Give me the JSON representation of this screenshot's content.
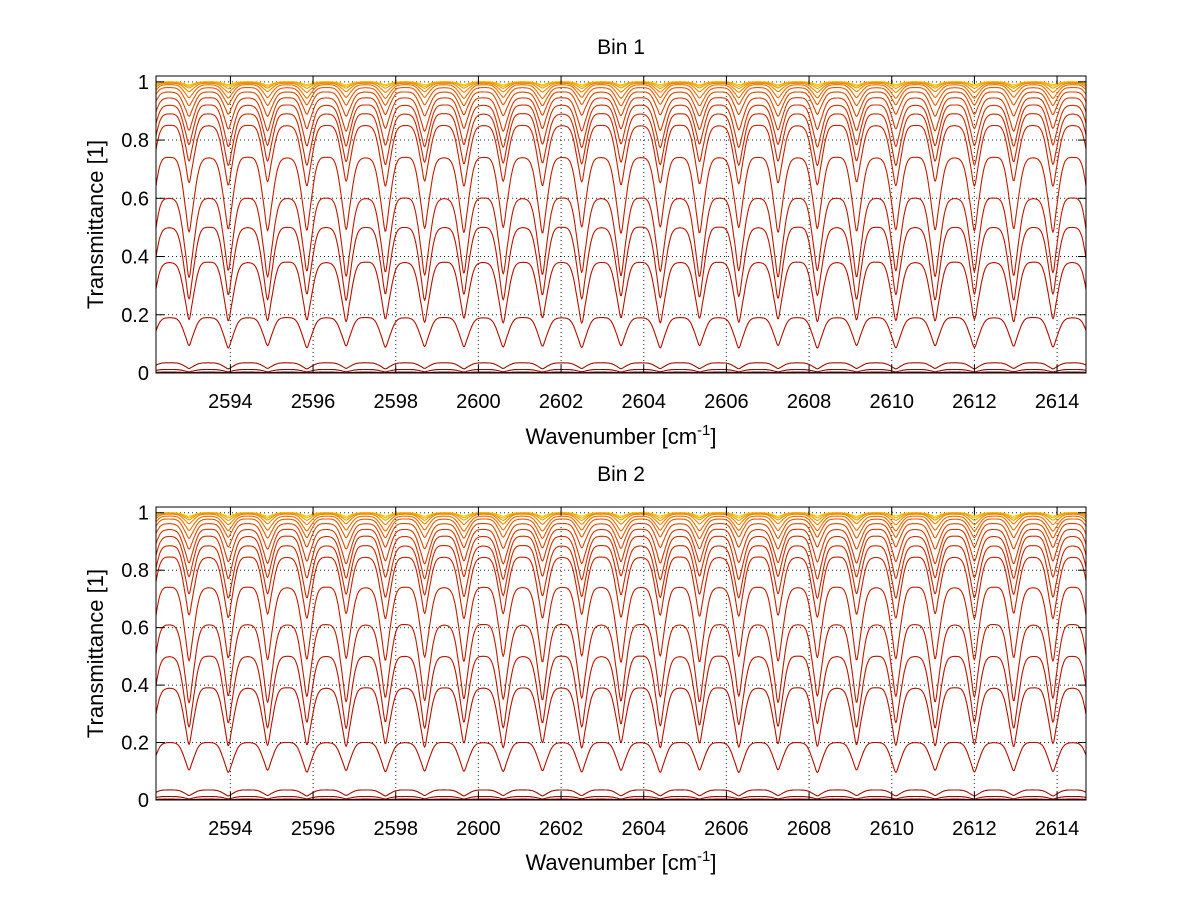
{
  "chart_data": [
    {
      "type": "line",
      "title": "Bin 1",
      "xlabel": "Wavenumber [cm",
      "xlabel_sup": "-1",
      "xlabel_suffix": "]",
      "ylabel": "Transmittance [1]",
      "xlim": [
        2592.2,
        2614.7
      ],
      "ylim": [
        0,
        1.02
      ],
      "grid": true,
      "xticks": [
        2594,
        2596,
        2598,
        2600,
        2602,
        2604,
        2606,
        2608,
        2610,
        2612,
        2614
      ],
      "xtick_labels": [
        "2594",
        "2596",
        "2598",
        "2600",
        "2602",
        "2604",
        "2606",
        "2608",
        "2610",
        "2612",
        "2614"
      ],
      "yticks": [
        0,
        0.2,
        0.4,
        0.6,
        0.8,
        1
      ],
      "ytick_labels": [
        "0",
        "0.2",
        "0.4",
        "0.6",
        "0.8",
        "1"
      ],
      "line_spacing_cm1": 0.95,
      "series": [
        {
          "baseline": 1.0,
          "depth": 0.01,
          "color": "#f5d000"
        },
        {
          "baseline": 1.0,
          "depth": 0.015,
          "color": "#f2b600"
        },
        {
          "baseline": 0.998,
          "depth": 0.02,
          "color": "#f09a00"
        },
        {
          "baseline": 0.995,
          "depth": 0.03,
          "color": "#ee8400"
        },
        {
          "baseline": 0.99,
          "depth": 0.045,
          "color": "#ea6e00"
        },
        {
          "baseline": 0.98,
          "depth": 0.06,
          "color": "#e25a00"
        },
        {
          "baseline": 0.965,
          "depth": 0.08,
          "color": "#d84800"
        },
        {
          "baseline": 0.945,
          "depth": 0.11,
          "color": "#d23a00"
        },
        {
          "baseline": 0.92,
          "depth": 0.14,
          "color": "#cc3000"
        },
        {
          "baseline": 0.89,
          "depth": 0.17,
          "color": "#c82800"
        },
        {
          "baseline": 0.85,
          "depth": 0.2,
          "color": "#c42200"
        },
        {
          "baseline": 0.74,
          "depth": 0.25,
          "color": "#c01e00"
        },
        {
          "baseline": 0.6,
          "depth": 0.26,
          "color": "#bc1a00"
        },
        {
          "baseline": 0.5,
          "depth": 0.24,
          "color": "#b81600"
        },
        {
          "baseline": 0.38,
          "depth": 0.2,
          "color": "#b41200"
        },
        {
          "baseline": 0.19,
          "depth": 0.1,
          "color": "#ae1000"
        },
        {
          "baseline": 0.035,
          "depth": 0.02,
          "color": "#a00c00"
        },
        {
          "baseline": 0.012,
          "depth": 0.008,
          "color": "#900800"
        },
        {
          "baseline": 0.003,
          "depth": 0.002,
          "color": "#800000"
        }
      ]
    },
    {
      "type": "line",
      "title": "Bin 2",
      "xlabel": "Wavenumber [cm",
      "xlabel_sup": "-1",
      "xlabel_suffix": "]",
      "ylabel": "Transmittance [1]",
      "xlim": [
        2592.2,
        2614.7
      ],
      "ylim": [
        0,
        1.02
      ],
      "grid": true,
      "xticks": [
        2594,
        2596,
        2598,
        2600,
        2602,
        2604,
        2606,
        2608,
        2610,
        2612,
        2614
      ],
      "xtick_labels": [
        "2594",
        "2596",
        "2598",
        "2600",
        "2602",
        "2604",
        "2606",
        "2608",
        "2610",
        "2612",
        "2614"
      ],
      "yticks": [
        0,
        0.2,
        0.4,
        0.6,
        0.8,
        1
      ],
      "ytick_labels": [
        "0",
        "0.2",
        "0.4",
        "0.6",
        "0.8",
        "1"
      ],
      "line_spacing_cm1": 0.95,
      "series": [
        {
          "baseline": 1.0,
          "depth": 0.012,
          "color": "#f5d000"
        },
        {
          "baseline": 1.0,
          "depth": 0.018,
          "color": "#f2b600"
        },
        {
          "baseline": 0.998,
          "depth": 0.024,
          "color": "#f09a00"
        },
        {
          "baseline": 0.995,
          "depth": 0.035,
          "color": "#ee8400"
        },
        {
          "baseline": 0.988,
          "depth": 0.05,
          "color": "#ea6e00"
        },
        {
          "baseline": 0.978,
          "depth": 0.065,
          "color": "#e25a00"
        },
        {
          "baseline": 0.962,
          "depth": 0.085,
          "color": "#d84800"
        },
        {
          "baseline": 0.942,
          "depth": 0.115,
          "color": "#d23a00"
        },
        {
          "baseline": 0.918,
          "depth": 0.145,
          "color": "#cc3000"
        },
        {
          "baseline": 0.885,
          "depth": 0.175,
          "color": "#c82800"
        },
        {
          "baseline": 0.845,
          "depth": 0.205,
          "color": "#c42200"
        },
        {
          "baseline": 0.74,
          "depth": 0.25,
          "color": "#c01e00"
        },
        {
          "baseline": 0.61,
          "depth": 0.26,
          "color": "#bc1a00"
        },
        {
          "baseline": 0.5,
          "depth": 0.24,
          "color": "#b81600"
        },
        {
          "baseline": 0.39,
          "depth": 0.2,
          "color": "#b41200"
        },
        {
          "baseline": 0.2,
          "depth": 0.1,
          "color": "#ae1000"
        },
        {
          "baseline": 0.035,
          "depth": 0.02,
          "color": "#a00c00"
        },
        {
          "baseline": 0.012,
          "depth": 0.008,
          "color": "#900800"
        },
        {
          "baseline": 0.003,
          "depth": 0.002,
          "color": "#800000"
        }
      ]
    }
  ]
}
